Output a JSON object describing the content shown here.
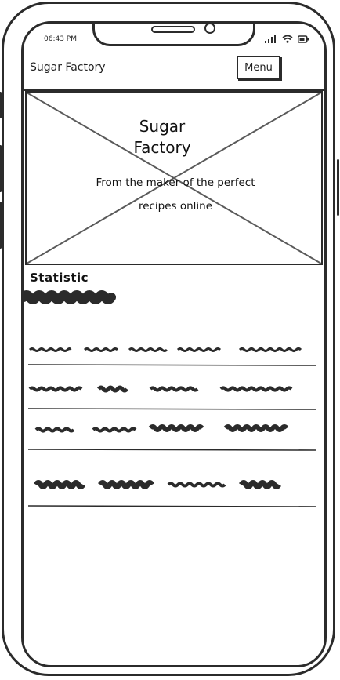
{
  "status_bar": {
    "time": "06:43 PM"
  },
  "header": {
    "app_title": "Sugar Factory",
    "menu_label": "Menu"
  },
  "hero": {
    "title_line1": "Sugar",
    "title_line2": "Factory",
    "subtitle_line1": "From the maker of the perfect",
    "subtitle_line2": "recipes online"
  },
  "statistic": {
    "heading": "Statistic"
  },
  "colors": {
    "ink": "#2b2b2b",
    "background": "#ffffff"
  },
  "icons": [
    "signal-icon",
    "wifi-icon",
    "battery-icon"
  ]
}
